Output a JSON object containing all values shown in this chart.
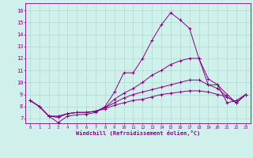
{
  "xlabel": "Windchill (Refroidissement éolien,°C)",
  "background_color": "#cff0eb",
  "grid_color": "#b0d8d2",
  "line_color": "#880088",
  "x_ticks": [
    0,
    1,
    2,
    3,
    4,
    5,
    6,
    7,
    8,
    9,
    10,
    11,
    12,
    13,
    14,
    15,
    16,
    17,
    18,
    19,
    20,
    21,
    22,
    23
  ],
  "y_ticks": [
    7,
    8,
    9,
    10,
    11,
    12,
    13,
    14,
    15,
    16
  ],
  "ylim": [
    6.6,
    16.6
  ],
  "xlim": [
    -0.5,
    23.5
  ],
  "lines": [
    [
      8.5,
      8.0,
      7.2,
      6.65,
      7.2,
      7.3,
      7.35,
      7.5,
      8.0,
      9.2,
      10.8,
      10.8,
      12.0,
      13.5,
      14.8,
      15.8,
      15.2,
      14.5,
      12.0,
      9.8,
      9.8,
      8.3,
      8.5,
      9.0
    ],
    [
      8.5,
      8.0,
      7.2,
      7.1,
      7.4,
      7.5,
      7.5,
      7.6,
      7.9,
      8.6,
      9.1,
      9.5,
      10.0,
      10.6,
      11.0,
      11.5,
      11.8,
      12.0,
      12.0,
      10.3,
      9.8,
      9.0,
      8.3,
      9.0
    ],
    [
      8.5,
      8.0,
      7.2,
      7.1,
      7.4,
      7.5,
      7.5,
      7.6,
      7.9,
      8.3,
      8.7,
      9.0,
      9.2,
      9.4,
      9.6,
      9.8,
      10.0,
      10.2,
      10.2,
      9.8,
      9.5,
      8.8,
      8.3,
      9.0
    ],
    [
      8.5,
      8.0,
      7.2,
      7.2,
      7.4,
      7.5,
      7.5,
      7.6,
      7.8,
      8.1,
      8.3,
      8.5,
      8.6,
      8.8,
      9.0,
      9.1,
      9.2,
      9.3,
      9.3,
      9.2,
      9.0,
      8.8,
      8.3,
      9.0
    ]
  ]
}
